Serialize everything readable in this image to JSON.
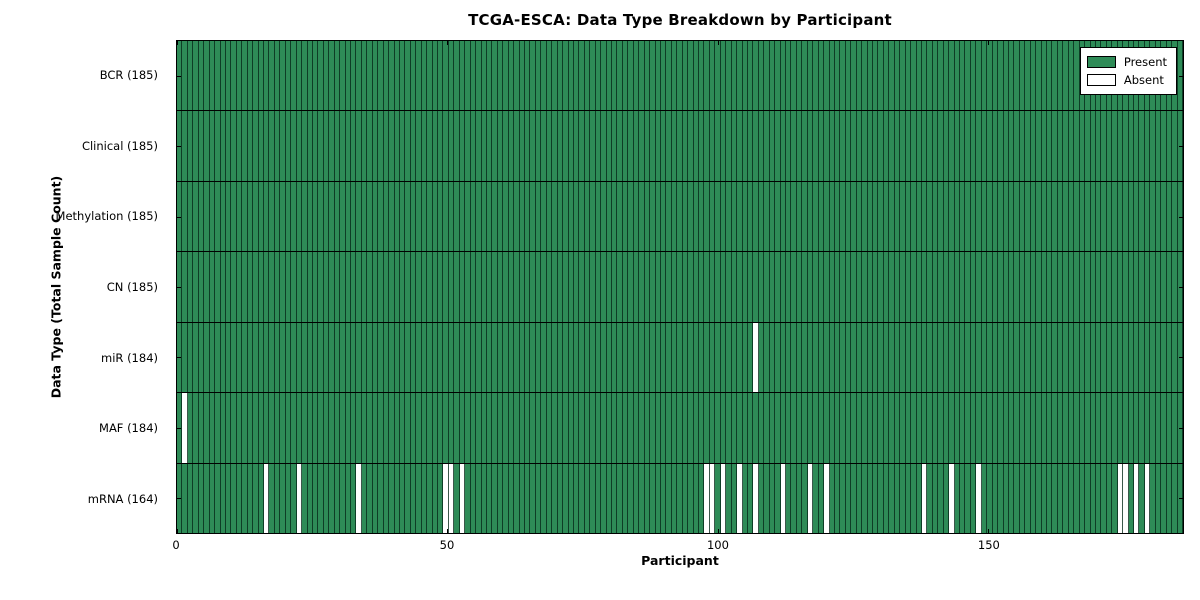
{
  "figure": {
    "title": "TCGA-ESCA: Data Type Breakdown by Participant",
    "xlabel": "Participant",
    "ylabel": "Data Type (Total Sample Count)"
  },
  "chart_data": {
    "type": "heatmap",
    "title": "TCGA-ESCA: Data Type Breakdown by Participant",
    "xlabel": "Participant",
    "ylabel": "Data Type (Total Sample Count)",
    "n_participants": 185,
    "x_axis": {
      "ticks": [
        0,
        50,
        100,
        150
      ],
      "range": [
        0,
        186
      ]
    },
    "legend": {
      "position": "upper right",
      "entries": [
        {
          "label": "Present",
          "color": "#2e8b57"
        },
        {
          "label": "Absent",
          "color": "#ffffff"
        }
      ]
    },
    "colors": {
      "present": "#2e8b57",
      "absent": "#ffffff",
      "edge": "#000000"
    },
    "rows": [
      {
        "data_type": "BCR",
        "total": 185,
        "label": "BCR (185)",
        "absent_participants": []
      },
      {
        "data_type": "Clinical",
        "total": 185,
        "label": "Clinical (185)",
        "absent_participants": []
      },
      {
        "data_type": "Methylation",
        "total": 185,
        "label": "Methylation (185)",
        "absent_participants": []
      },
      {
        "data_type": "CN",
        "total": 185,
        "label": "CN (185)",
        "absent_participants": []
      },
      {
        "data_type": "miR",
        "total": 184,
        "label": "miR (184)",
        "absent_participants": [
          106
        ]
      },
      {
        "data_type": "MAF",
        "total": 184,
        "label": "MAF (184)",
        "absent_participants": [
          1
        ]
      },
      {
        "data_type": "mRNA",
        "total": 164,
        "label": "mRNA (164)",
        "absent_participants": [
          16,
          22,
          33,
          49,
          50,
          52,
          97,
          98,
          100,
          103,
          106,
          111,
          116,
          119,
          137,
          142,
          147,
          173,
          174,
          176,
          178
        ]
      }
    ]
  }
}
